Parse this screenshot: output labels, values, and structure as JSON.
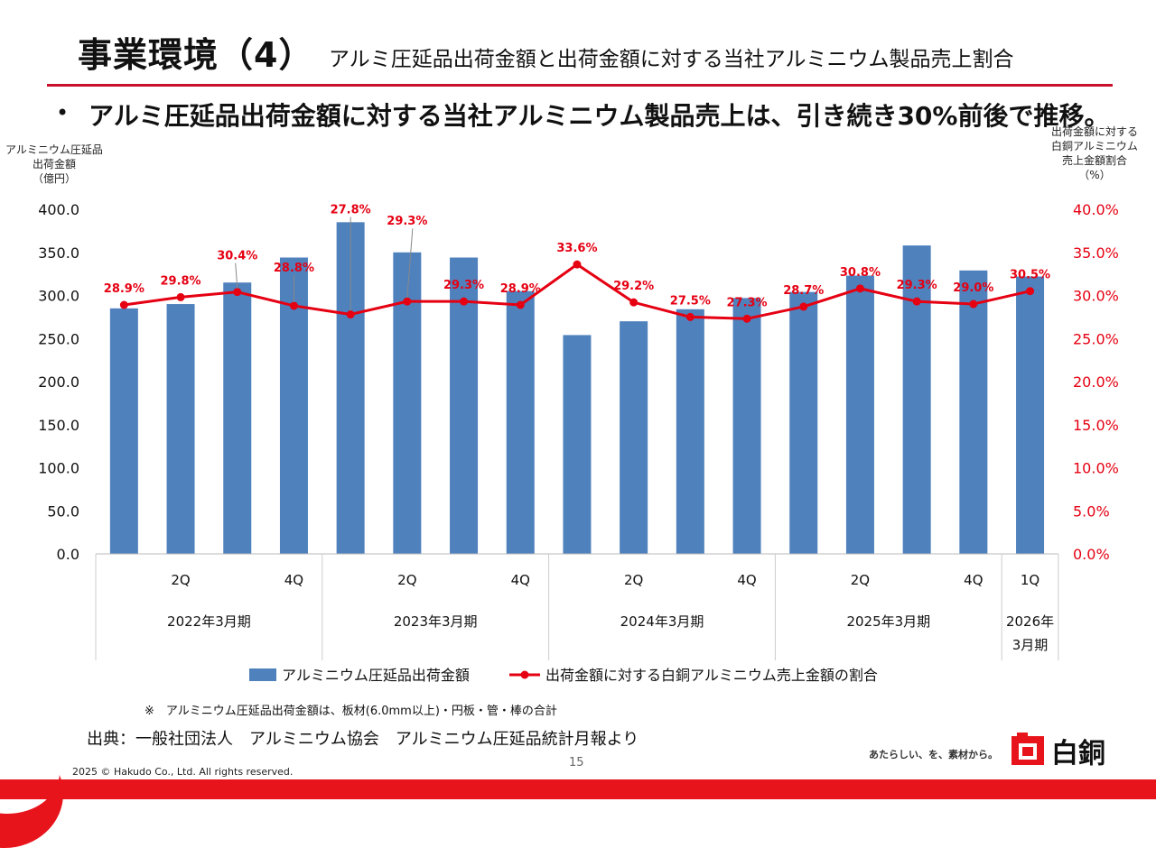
{
  "header": {
    "title": "事業環境（4）",
    "subtitle": "アルミ圧延品出荷金額と出荷金額に対する当社アルミニウム製品売上割合"
  },
  "bullet": {
    "mark": "•",
    "text": "アルミ圧延品出荷金額に対する当社アルミニウム製品売上は、引き続き30%前後で推移。"
  },
  "colors": {
    "bar": "#4f81bd",
    "line": "#e50012",
    "brand_red": "#e8141b"
  },
  "chart_data": {
    "type": "bar",
    "y_left_label": [
      "アルミニウム圧延品",
      "出荷金額",
      "（億円）"
    ],
    "y_right_label": [
      "出荷金額に対する",
      "白銅アルミニウム",
      "売上金額割合",
      "（%）"
    ],
    "y_left_ticks": [
      "400.0",
      "350.0",
      "300.0",
      "250.0",
      "200.0",
      "150.0",
      "100.0",
      "50.0",
      "0.0"
    ],
    "y_right_ticks": [
      "40.0%",
      "35.0%",
      "30.0%",
      "25.0%",
      "20.0%",
      "15.0%",
      "10.0%",
      "5.0%",
      "0.0%"
    ],
    "ylim_left": [
      0,
      400
    ],
    "ylim_right": [
      0,
      40
    ],
    "quarter_labels": [
      "",
      "2Q",
      "",
      "4Q",
      "",
      "2Q",
      "",
      "4Q",
      "",
      "2Q",
      "",
      "4Q",
      "",
      "2Q",
      "",
      "4Q",
      "1Q"
    ],
    "fiscal_years": [
      {
        "label": "2022年3月期",
        "quarters": 4
      },
      {
        "label": "2023年3月期",
        "quarters": 4
      },
      {
        "label": "2024年3月期",
        "quarters": 4
      },
      {
        "label": "2025年3月期",
        "quarters": 4
      },
      {
        "label": "2026年3月期",
        "quarters": 1,
        "lines": [
          "2026年",
          "3月期"
        ]
      }
    ],
    "series": [
      {
        "name": "アルミニウム圧延品出荷金額",
        "type": "bar",
        "axis": "left",
        "values": [
          285,
          290,
          315,
          344,
          385,
          350,
          344,
          305,
          254,
          270,
          284,
          297,
          304,
          323,
          358,
          329,
          322
        ]
      },
      {
        "name": "出荷金額に対する白銅アルミニウム売上金額の割合",
        "type": "line",
        "axis": "right",
        "values": [
          28.9,
          29.8,
          30.4,
          28.8,
          27.8,
          29.3,
          29.3,
          28.9,
          33.6,
          29.2,
          27.5,
          27.3,
          28.7,
          30.8,
          29.3,
          29.0,
          30.5
        ],
        "labels": [
          "28.9%",
          "29.8%",
          "30.4%",
          "28.8%",
          "27.8%",
          "29.3%",
          "29.3%",
          "28.9%",
          "33.6%",
          "29.2%",
          "27.5%",
          "27.3%",
          "28.7%",
          "30.8%",
          "29.3%",
          "29.0%",
          "30.5%"
        ]
      }
    ],
    "legend": [
      "アルミニウム圧延品出荷金額",
      "出荷金額に対する白銅アルミニウム売上金額の割合"
    ]
  },
  "footnote": "※　アルミニウム圧延品出荷金額は、板材(6.0mm以上)・円板・管・棒の合計",
  "source": "出典：一般社団法人　アルミニウム協会　アルミニウム圧延品統計月報より",
  "page_number": "15",
  "copyright": "2025 © Hakudo Co., Ltd. All rights reserved.",
  "tagline": "あたらしい、を、素材から。",
  "brand_name": "白銅"
}
